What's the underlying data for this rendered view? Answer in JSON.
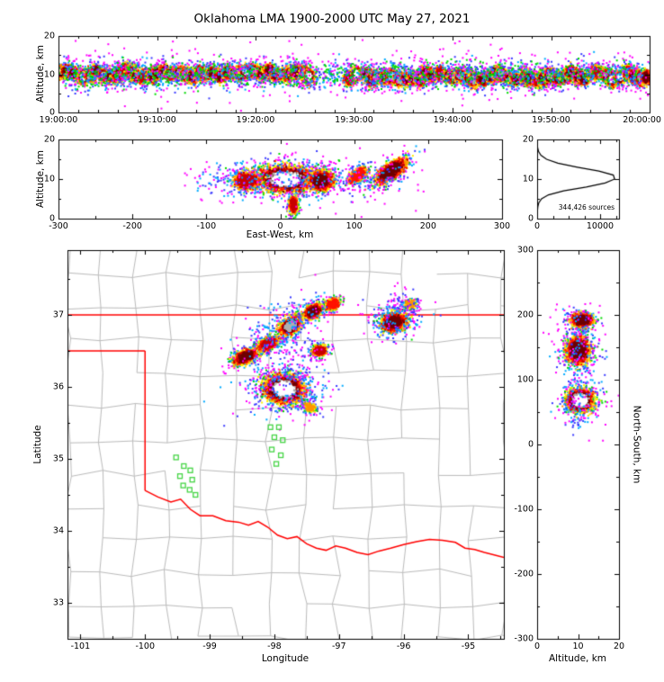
{
  "title": "Oklahoma LMA 1900-2000 UTC May 27, 2021",
  "colors": {
    "colormap": [
      "#ff00ff",
      "#3a3aff",
      "#00aaff",
      "#00d800",
      "#ffee00",
      "#ff9400",
      "#ff1200",
      "#c80000",
      "#6e0000",
      "#b0b0b0",
      "#ffffff"
    ],
    "state_border": "#ff0000",
    "county_lines": "#bbbbbb",
    "stations": "#46d546",
    "histogram_line": "#000000",
    "frame": "#000000",
    "background": "#ffffff",
    "figure_border": "#c9c9c9"
  },
  "chart_data": [
    {
      "id": "time_height_panel",
      "type": "heatmap",
      "xlabel": "",
      "ylabel": "Altitude, km",
      "x_unit": "seconds after 19:00:00 UTC",
      "xlim": [
        0,
        3600
      ],
      "ylim": [
        0,
        20
      ],
      "xticks": [
        {
          "v": 0,
          "label": "19:00:00"
        },
        {
          "v": 600,
          "label": "19:10:00"
        },
        {
          "v": 1200,
          "label": "19:20:00"
        },
        {
          "v": 1800,
          "label": "19:30:00"
        },
        {
          "v": 2400,
          "label": "19:40:00"
        },
        {
          "v": 3000,
          "label": "19:50:00"
        },
        {
          "v": 3600,
          "label": "20:00:00"
        }
      ],
      "yticks": [
        {
          "v": 0,
          "label": "0"
        },
        {
          "v": 10,
          "label": "10"
        },
        {
          "v": 20,
          "label": "20"
        }
      ],
      "band": {
        "y_center_km": 9.8,
        "start_s": 0,
        "end_s": 3600,
        "gap_s": [
          1550,
          1770
        ],
        "peak_intensity": 1.0
      },
      "fringe_blobs": [
        {
          "x": 1800,
          "y": 10,
          "rx": 1760,
          "ry": 5.2,
          "rot": 0,
          "intensity": 0.3,
          "n": 1000,
          "core": 1,
          "uniformX": true
        },
        {
          "x": 1800,
          "y": 10.2,
          "rx": 1790,
          "ry": 8.8,
          "rot": 0,
          "intensity": 0.11,
          "n": 420,
          "core": 1,
          "uniformX": true
        }
      ],
      "description": "Dense band of lightning sources 5-15 km altitude across the full hour with a brief gap near 19:26-19:29"
    },
    {
      "id": "ew_altitude_panel",
      "type": "heatmap",
      "xlabel": "East-West, km",
      "ylabel": "Altitude, km",
      "xlim": [
        -300,
        300
      ],
      "ylim": [
        0,
        20
      ],
      "xticks": [
        {
          "v": -300,
          "label": "-300"
        },
        {
          "v": -200,
          "label": "-200"
        },
        {
          "v": -100,
          "label": "-100"
        },
        {
          "v": 0,
          "label": "0"
        },
        {
          "v": 100,
          "label": "100"
        },
        {
          "v": 200,
          "label": "200"
        },
        {
          "v": 300,
          "label": "300"
        }
      ],
      "yticks": [
        {
          "v": 0,
          "label": "0"
        },
        {
          "v": 10,
          "label": "10"
        },
        {
          "v": 20,
          "label": "20"
        }
      ],
      "blobs": [
        {
          "x": 8,
          "y": 10,
          "rx": 55,
          "ry": 4.6,
          "rot": 0,
          "intensity": 1.0,
          "n": 300,
          "core": 0.72
        },
        {
          "x": -45,
          "y": 9.5,
          "rx": 28,
          "ry": 3.6,
          "rot": 0,
          "intensity": 0.8,
          "n": 120,
          "core": 0.9
        },
        {
          "x": 55,
          "y": 9.6,
          "rx": 26,
          "ry": 4.0,
          "rot": 0,
          "intensity": 0.85,
          "n": 130,
          "core": 0.85
        },
        {
          "x": 150,
          "y": 12,
          "rx": 32,
          "ry": 3.4,
          "rot": 6,
          "intensity": 0.84,
          "n": 150,
          "core": 0.8
        },
        {
          "x": 105,
          "y": 11,
          "rx": 20,
          "ry": 3,
          "rot": 5,
          "intensity": 0.6,
          "n": 70,
          "core": 1
        },
        {
          "x": 18,
          "y": 3.5,
          "rx": 9,
          "ry": 3.4,
          "rot": 0,
          "intensity": 0.72,
          "n": 70,
          "core": 0.9
        },
        {
          "x": 25,
          "y": 10,
          "rx": 140,
          "ry": 5.5,
          "rot": 0,
          "intensity": 0.28,
          "n": 220,
          "core": 1,
          "uniformX": true
        },
        {
          "x": 35,
          "y": 10,
          "rx": 165,
          "ry": 8.2,
          "rot": 0,
          "intensity": 0.1,
          "n": 120,
          "core": 1,
          "uniformX": true
        }
      ]
    },
    {
      "id": "source_histogram_panel",
      "type": "line",
      "xlabel": "",
      "ylabel": "",
      "annotation": "344,426 sources",
      "xlim": [
        0,
        13000
      ],
      "ylim": [
        0,
        20
      ],
      "xticks": [
        {
          "v": 0,
          "label": "0"
        },
        {
          "v": 10000,
          "label": "10000"
        }
      ],
      "yticks": [
        {
          "v": 0,
          "label": "0"
        },
        {
          "v": 10,
          "label": "10"
        },
        {
          "v": 20,
          "label": "20"
        }
      ],
      "altitude_km": [
        0,
        1,
        2,
        3,
        4,
        5,
        6,
        7,
        8,
        9,
        10,
        11,
        12,
        13,
        14,
        15,
        16,
        17,
        18,
        19,
        20
      ],
      "source_counts": [
        20,
        30,
        50,
        110,
        260,
        700,
        1800,
        4200,
        7800,
        10800,
        12300,
        12100,
        9800,
        6400,
        3300,
        1500,
        600,
        220,
        70,
        20,
        0
      ]
    },
    {
      "id": "map_panel",
      "type": "heatmap",
      "xlabel": "Longitude",
      "ylabel": "Latitude",
      "xlim": [
        -101.2,
        -94.45
      ],
      "ylim": [
        32.5,
        37.9
      ],
      "xticks": [
        {
          "v": -101,
          "label": "-101"
        },
        {
          "v": -100,
          "label": "-100"
        },
        {
          "v": -99,
          "label": "-99"
        },
        {
          "v": -98,
          "label": "-98"
        },
        {
          "v": -97,
          "label": "-97"
        },
        {
          "v": -96,
          "label": "-96"
        },
        {
          "v": -95,
          "label": "-95"
        }
      ],
      "yticks": [
        {
          "v": 33,
          "label": "33"
        },
        {
          "v": 34,
          "label": "34"
        },
        {
          "v": 35,
          "label": "35"
        },
        {
          "v": 36,
          "label": "36"
        },
        {
          "v": 37,
          "label": "37"
        }
      ],
      "state_border": {
        "north": [
          [
            -101.2,
            37.0
          ],
          [
            -94.45,
            37.0
          ]
        ],
        "panhandle_south": [
          [
            -101.2,
            36.5
          ],
          [
            -100.0,
            36.5
          ]
        ],
        "west": [
          [
            -100.0,
            36.5
          ],
          [
            -100.0,
            34.56
          ]
        ],
        "red_river": [
          [
            -100.0,
            34.56
          ],
          [
            -99.8,
            34.47
          ],
          [
            -99.6,
            34.4
          ],
          [
            -99.45,
            34.44
          ],
          [
            -99.3,
            34.3
          ],
          [
            -99.15,
            34.21
          ],
          [
            -98.95,
            34.21
          ],
          [
            -98.75,
            34.14
          ],
          [
            -98.55,
            34.12
          ],
          [
            -98.4,
            34.08
          ],
          [
            -98.25,
            34.13
          ],
          [
            -98.1,
            34.05
          ],
          [
            -97.95,
            33.94
          ],
          [
            -97.8,
            33.89
          ],
          [
            -97.65,
            33.92
          ],
          [
            -97.5,
            33.82
          ],
          [
            -97.35,
            33.76
          ],
          [
            -97.2,
            33.73
          ],
          [
            -97.05,
            33.79
          ],
          [
            -96.9,
            33.76
          ],
          [
            -96.72,
            33.7
          ],
          [
            -96.55,
            33.67
          ],
          [
            -96.38,
            33.72
          ],
          [
            -96.2,
            33.76
          ],
          [
            -96.0,
            33.81
          ],
          [
            -95.8,
            33.85
          ],
          [
            -95.6,
            33.88
          ],
          [
            -95.4,
            33.87
          ],
          [
            -95.2,
            33.84
          ],
          [
            -95.05,
            33.76
          ],
          [
            -94.9,
            33.74
          ],
          [
            -94.75,
            33.7
          ],
          [
            -94.45,
            33.63
          ]
        ]
      },
      "stations": [
        [
          -99.52,
          35.02
        ],
        [
          -99.4,
          34.9
        ],
        [
          -99.3,
          34.84
        ],
        [
          -99.46,
          34.76
        ],
        [
          -99.27,
          34.71
        ],
        [
          -99.41,
          34.63
        ],
        [
          -99.31,
          34.57
        ],
        [
          -99.22,
          34.5
        ],
        [
          -98.06,
          35.44
        ],
        [
          -97.93,
          35.44
        ],
        [
          -98.0,
          35.3
        ],
        [
          -97.87,
          35.26
        ],
        [
          -98.04,
          35.13
        ],
        [
          -97.9,
          35.05
        ],
        [
          -97.97,
          34.93
        ]
      ],
      "blobs": [
        {
          "x": -97.85,
          "y": 35.97,
          "rx": 0.42,
          "ry": 0.27,
          "rot": -5,
          "intensity": 1.0,
          "n": 330,
          "core": 0.72
        },
        {
          "x": -97.8,
          "y": 36.0,
          "rx": 0.75,
          "ry": 0.42,
          "rot": 0,
          "intensity": 0.27,
          "n": 150,
          "core": 1
        },
        {
          "x": -98.45,
          "y": 36.42,
          "rx": 0.28,
          "ry": 0.14,
          "rot": 20,
          "intensity": 0.85,
          "n": 130,
          "core": 0.85
        },
        {
          "x": -98.1,
          "y": 36.6,
          "rx": 0.25,
          "ry": 0.14,
          "rot": 25,
          "intensity": 0.8,
          "n": 110,
          "core": 0.9
        },
        {
          "x": -97.75,
          "y": 36.85,
          "rx": 0.26,
          "ry": 0.16,
          "rot": 30,
          "intensity": 0.96,
          "n": 150,
          "core": 0.8
        },
        {
          "x": -97.4,
          "y": 37.05,
          "rx": 0.22,
          "ry": 0.14,
          "rot": 25,
          "intensity": 0.88,
          "n": 110,
          "core": 0.85
        },
        {
          "x": -97.1,
          "y": 37.15,
          "rx": 0.18,
          "ry": 0.12,
          "rot": 20,
          "intensity": 0.7,
          "n": 70,
          "core": 1
        },
        {
          "x": -97.9,
          "y": 36.8,
          "rx": 0.7,
          "ry": 0.38,
          "rot": 28,
          "intensity": 0.22,
          "n": 140,
          "core": 1
        },
        {
          "x": -97.3,
          "y": 36.5,
          "rx": 0.16,
          "ry": 0.11,
          "rot": 0,
          "intensity": 0.75,
          "n": 80,
          "core": 0.9
        },
        {
          "x": -96.15,
          "y": 36.9,
          "rx": 0.3,
          "ry": 0.19,
          "rot": 10,
          "intensity": 0.9,
          "n": 160,
          "core": 0.85
        },
        {
          "x": -96.1,
          "y": 36.95,
          "rx": 0.5,
          "ry": 0.3,
          "rot": 0,
          "intensity": 0.25,
          "n": 90,
          "core": 1
        },
        {
          "x": -95.9,
          "y": 37.15,
          "rx": 0.13,
          "ry": 0.09,
          "rot": 0,
          "intensity": 0.55,
          "n": 45,
          "core": 1
        },
        {
          "x": -97.45,
          "y": 35.72,
          "rx": 0.14,
          "ry": 0.09,
          "rot": -20,
          "intensity": 0.5,
          "n": 45,
          "core": 1
        },
        {
          "x": -97.6,
          "y": 36.3,
          "rx": 0.5,
          "ry": 0.3,
          "rot": 40,
          "intensity": 0.13,
          "n": 70,
          "core": 1
        },
        {
          "x": -96.0,
          "y": 37.2,
          "rx": 0.25,
          "ry": 0.18,
          "rot": 0,
          "intensity": 0.12,
          "n": 45,
          "core": 1
        }
      ]
    },
    {
      "id": "ns_altitude_panel",
      "type": "heatmap",
      "xlabel": "Altitude, km",
      "ylabel": "North-South, km",
      "xlim": [
        0,
        20
      ],
      "ylim": [
        -300,
        300
      ],
      "xticks": [
        {
          "v": 0,
          "label": "0"
        },
        {
          "v": 10,
          "label": "10"
        },
        {
          "v": 20,
          "label": "20"
        }
      ],
      "yticks": [
        {
          "v": 300,
          "label": "300"
        },
        {
          "v": 200,
          "label": "200"
        },
        {
          "v": 100,
          "label": "100"
        },
        {
          "v": 0,
          "label": "0"
        },
        {
          "v": -100,
          "label": "-100"
        },
        {
          "v": -200,
          "label": "-200"
        },
        {
          "v": -300,
          "label": "-300"
        }
      ],
      "blobs": [
        {
          "x": 10.5,
          "y": 68,
          "rx": 4.3,
          "ry": 23,
          "rot": 0,
          "intensity": 1.0,
          "n": 280,
          "core": 0.72
        },
        {
          "x": 10,
          "y": 145,
          "rx": 4.3,
          "ry": 32,
          "rot": 0,
          "intensity": 0.9,
          "n": 200,
          "core": 0.85
        },
        {
          "x": 11,
          "y": 192,
          "rx": 3.8,
          "ry": 17,
          "rot": 0,
          "intensity": 0.88,
          "n": 130,
          "core": 0.85
        },
        {
          "x": 10,
          "y": 115,
          "rx": 6.5,
          "ry": 90,
          "rot": 0,
          "intensity": 0.25,
          "n": 170,
          "core": 1,
          "uniformY": true
        },
        {
          "x": 10,
          "y": 110,
          "rx": 8,
          "ry": 110,
          "rot": 0,
          "intensity": 0.1,
          "n": 90,
          "core": 1,
          "uniformY": true
        }
      ]
    }
  ]
}
